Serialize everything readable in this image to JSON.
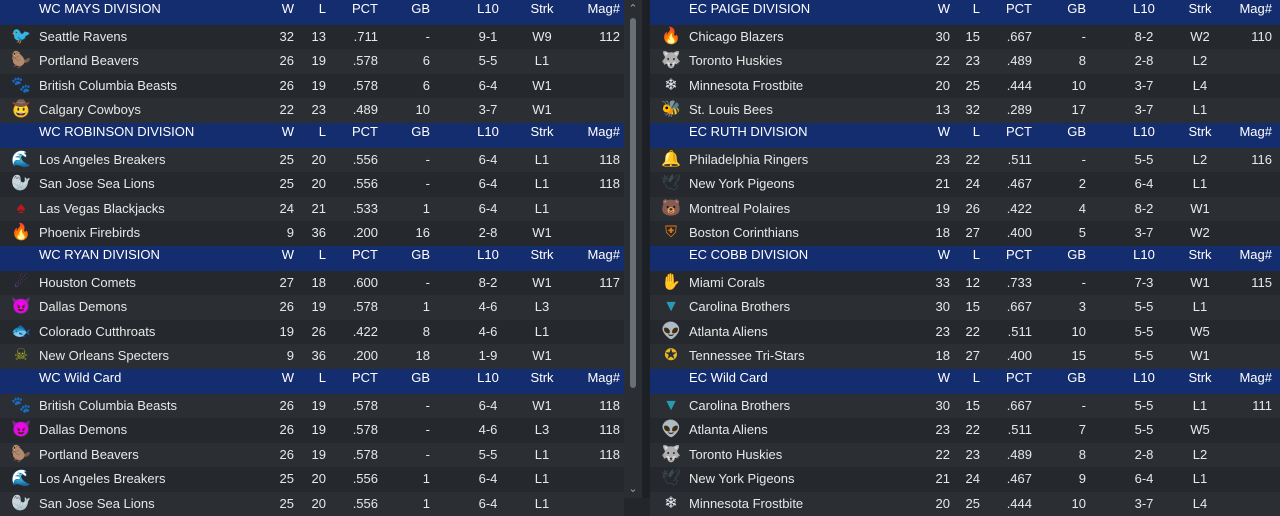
{
  "columns": {
    "w": "W",
    "l": "L",
    "pct": "PCT",
    "gb": "GB",
    "l10": "L10",
    "strk": "Strk",
    "mag": "Mag#"
  },
  "left": [
    {
      "title": "WC MAYS DIVISION",
      "teams": [
        {
          "name": "Seattle Ravens",
          "w": "32",
          "l": "13",
          "pct": ".711",
          "gb": "-",
          "l10": "9-1",
          "strk": "W9",
          "mag": "112",
          "icon": "🐦",
          "color": "#b03a9c"
        },
        {
          "name": "Portland Beavers",
          "w": "26",
          "l": "19",
          "pct": ".578",
          "gb": "6",
          "l10": "5-5",
          "strk": "L1",
          "mag": "",
          "icon": "🦫",
          "color": "#3a8a3a"
        },
        {
          "name": "British Columbia Beasts",
          "w": "26",
          "l": "19",
          "pct": ".578",
          "gb": "6",
          "l10": "6-4",
          "strk": "W1",
          "mag": "",
          "icon": "🐾",
          "color": "#3a3d42"
        },
        {
          "name": "Calgary Cowboys",
          "w": "22",
          "l": "23",
          "pct": ".489",
          "gb": "10",
          "l10": "3-7",
          "strk": "W1",
          "mag": "",
          "icon": "🤠",
          "color": "#6a6cd6"
        }
      ]
    },
    {
      "title": "WC ROBINSON DIVISION",
      "teams": [
        {
          "name": "Los Angeles Breakers",
          "w": "25",
          "l": "20",
          "pct": ".556",
          "gb": "-",
          "l10": "6-4",
          "strk": "L1",
          "mag": "118",
          "icon": "🌊",
          "color": "#2a7fd0"
        },
        {
          "name": "San Jose Sea Lions",
          "w": "25",
          "l": "20",
          "pct": ".556",
          "gb": "-",
          "l10": "6-4",
          "strk": "L1",
          "mag": "118",
          "icon": "🦭",
          "color": "#1e2a60"
        },
        {
          "name": "Las Vegas Blackjacks",
          "w": "24",
          "l": "21",
          "pct": ".533",
          "gb": "1",
          "l10": "6-4",
          "strk": "L1",
          "mag": "",
          "icon": "♠",
          "color": "#c01818"
        },
        {
          "name": "Phoenix Firebirds",
          "w": "9",
          "l": "36",
          "pct": ".200",
          "gb": "16",
          "l10": "2-8",
          "strk": "W1",
          "mag": "",
          "icon": "🔥",
          "color": "#d88a20"
        }
      ]
    },
    {
      "title": "WC RYAN DIVISION",
      "teams": [
        {
          "name": "Houston Comets",
          "w": "27",
          "l": "18",
          "pct": ".600",
          "gb": "-",
          "l10": "8-2",
          "strk": "W1",
          "mag": "117",
          "icon": "☄",
          "color": "#7a3aa8"
        },
        {
          "name": "Dallas Demons",
          "w": "26",
          "l": "19",
          "pct": ".578",
          "gb": "1",
          "l10": "4-6",
          "strk": "L3",
          "mag": "",
          "icon": "😈",
          "color": "#b01818"
        },
        {
          "name": "Colorado Cutthroats",
          "w": "19",
          "l": "26",
          "pct": ".422",
          "gb": "8",
          "l10": "4-6",
          "strk": "L1",
          "mag": "",
          "icon": "🐟",
          "color": "#9aa030"
        },
        {
          "name": "New Orleans Specters",
          "w": "9",
          "l": "36",
          "pct": ".200",
          "gb": "18",
          "l10": "1-9",
          "strk": "W1",
          "mag": "",
          "icon": "☠",
          "color": "#a8b020"
        }
      ]
    },
    {
      "title": "WC  Wild Card",
      "teams": [
        {
          "name": "British Columbia Beasts",
          "w": "26",
          "l": "19",
          "pct": ".578",
          "gb": "-",
          "l10": "6-4",
          "strk": "W1",
          "mag": "118",
          "icon": "🐾",
          "color": "#3a3d42"
        },
        {
          "name": "Dallas Demons",
          "w": "26",
          "l": "19",
          "pct": ".578",
          "gb": "-",
          "l10": "4-6",
          "strk": "L3",
          "mag": "118",
          "icon": "😈",
          "color": "#b01818"
        },
        {
          "name": "Portland Beavers",
          "w": "26",
          "l": "19",
          "pct": ".578",
          "gb": "-",
          "l10": "5-5",
          "strk": "L1",
          "mag": "118",
          "icon": "🦫",
          "color": "#3a8a3a"
        },
        {
          "name": "Los Angeles Breakers",
          "w": "25",
          "l": "20",
          "pct": ".556",
          "gb": "1",
          "l10": "6-4",
          "strk": "L1",
          "mag": "",
          "icon": "🌊",
          "color": "#2a7fd0"
        },
        {
          "name": "San Jose Sea Lions",
          "w": "25",
          "l": "20",
          "pct": ".556",
          "gb": "1",
          "l10": "6-4",
          "strk": "L1",
          "mag": "",
          "icon": "🦭",
          "color": "#1e2a60"
        }
      ]
    }
  ],
  "right": [
    {
      "title": "EC PAIGE DIVISION",
      "teams": [
        {
          "name": "Chicago Blazers",
          "w": "30",
          "l": "15",
          "pct": ".667",
          "gb": "-",
          "l10": "8-2",
          "strk": "W2",
          "mag": "110",
          "icon": "🔥",
          "color": "#e0581c"
        },
        {
          "name": "Toronto Huskies",
          "w": "22",
          "l": "23",
          "pct": ".489",
          "gb": "8",
          "l10": "2-8",
          "strk": "L2",
          "mag": "",
          "icon": "🐺",
          "color": "#c8ccd4"
        },
        {
          "name": "Minnesota Frostbite",
          "w": "20",
          "l": "25",
          "pct": ".444",
          "gb": "10",
          "l10": "3-7",
          "strk": "L4",
          "mag": "",
          "icon": "❄",
          "color": "#e8e8f0"
        },
        {
          "name": "St. Louis Bees",
          "w": "13",
          "l": "32",
          "pct": ".289",
          "gb": "17",
          "l10": "3-7",
          "strk": "L1",
          "mag": "",
          "icon": "🐝",
          "color": "#c01850"
        }
      ]
    },
    {
      "title": "EC RUTH DIVISION",
      "teams": [
        {
          "name": "Philadelphia Ringers",
          "w": "23",
          "l": "22",
          "pct": ".511",
          "gb": "-",
          "l10": "5-5",
          "strk": "L2",
          "mag": "116",
          "icon": "🔔",
          "color": "#c89030"
        },
        {
          "name": "New York Pigeons",
          "w": "21",
          "l": "24",
          "pct": ".467",
          "gb": "2",
          "l10": "6-4",
          "strk": "L1",
          "mag": "",
          "icon": "🕊",
          "color": "#3a4a50"
        },
        {
          "name": "Montreal Polaires",
          "w": "19",
          "l": "26",
          "pct": ".422",
          "gb": "4",
          "l10": "8-2",
          "strk": "W1",
          "mag": "",
          "icon": "🐻",
          "color": "#2a90d8"
        },
        {
          "name": "Boston Corinthians",
          "w": "18",
          "l": "27",
          "pct": ".400",
          "gb": "5",
          "l10": "3-7",
          "strk": "W2",
          "mag": "",
          "icon": "⛨",
          "color": "#e07818"
        }
      ]
    },
    {
      "title": "EC COBB DIVISION",
      "teams": [
        {
          "name": "Miami Corals",
          "w": "33",
          "l": "12",
          "pct": ".733",
          "gb": "-",
          "l10": "7-3",
          "strk": "W1",
          "mag": "115",
          "icon": "✋",
          "color": "#e06838"
        },
        {
          "name": "Carolina Brothers",
          "w": "30",
          "l": "15",
          "pct": ".667",
          "gb": "3",
          "l10": "5-5",
          "strk": "L1",
          "mag": "",
          "icon": "▼",
          "color": "#2a9ab0"
        },
        {
          "name": "Atlanta Aliens",
          "w": "23",
          "l": "22",
          "pct": ".511",
          "gb": "10",
          "l10": "5-5",
          "strk": "W5",
          "mag": "",
          "icon": "👽",
          "color": "#28c040"
        },
        {
          "name": "Tennessee Tri-Stars",
          "w": "18",
          "l": "27",
          "pct": ".400",
          "gb": "15",
          "l10": "5-5",
          "strk": "W1",
          "mag": "",
          "icon": "✪",
          "color": "#e8b820"
        }
      ]
    },
    {
      "title": "EC  Wild Card",
      "teams": [
        {
          "name": "Carolina Brothers",
          "w": "30",
          "l": "15",
          "pct": ".667",
          "gb": "-",
          "l10": "5-5",
          "strk": "L1",
          "mag": "111",
          "icon": "▼",
          "color": "#2a9ab0"
        },
        {
          "name": "Atlanta Aliens",
          "w": "23",
          "l": "22",
          "pct": ".511",
          "gb": "7",
          "l10": "5-5",
          "strk": "W5",
          "mag": "",
          "icon": "👽",
          "color": "#28c040"
        },
        {
          "name": "Toronto Huskies",
          "w": "22",
          "l": "23",
          "pct": ".489",
          "gb": "8",
          "l10": "2-8",
          "strk": "L2",
          "mag": "",
          "icon": "🐺",
          "color": "#c8ccd4"
        },
        {
          "name": "New York Pigeons",
          "w": "21",
          "l": "24",
          "pct": ".467",
          "gb": "9",
          "l10": "6-4",
          "strk": "L1",
          "mag": "",
          "icon": "🕊",
          "color": "#3a4a50"
        },
        {
          "name": "Minnesota Frostbite",
          "w": "20",
          "l": "25",
          "pct": ".444",
          "gb": "10",
          "l10": "3-7",
          "strk": "L4",
          "mag": "",
          "icon": "❄",
          "color": "#e8e8f0"
        }
      ]
    }
  ],
  "scrollbar": {
    "up": "⌃",
    "down": "⌄"
  }
}
